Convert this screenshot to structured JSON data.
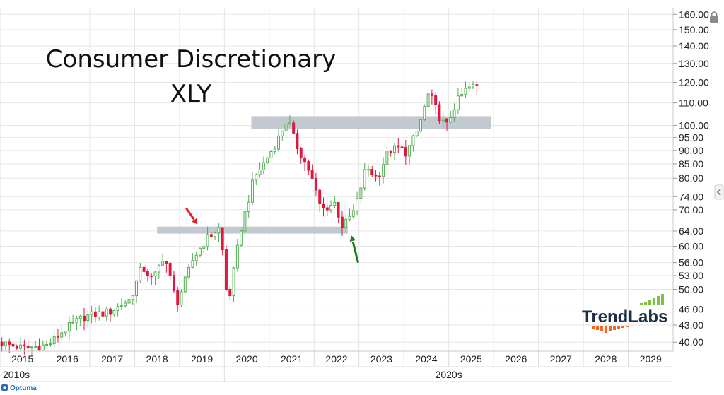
{
  "chart_data": {
    "type": "candlestick",
    "title": "Consumer Discretionary",
    "subtitle": "XLY",
    "y_scale": "log",
    "ylim": [
      38.5,
      164
    ],
    "xlim": [
      2015.0,
      2030.0
    ],
    "grid": true,
    "y_ticks": [
      {
        "value": 160,
        "label": "160.00"
      },
      {
        "value": 150,
        "label": "150.00"
      },
      {
        "value": 140,
        "label": "140.00"
      },
      {
        "value": 130,
        "label": "130.00"
      },
      {
        "value": 120,
        "label": "120.00"
      },
      {
        "value": 110,
        "label": "110.00"
      },
      {
        "value": 100,
        "label": "100.00"
      },
      {
        "value": 95,
        "label": "95.00"
      },
      {
        "value": 90,
        "label": "90.00"
      },
      {
        "value": 85,
        "label": "85.00"
      },
      {
        "value": 80,
        "label": "80.00"
      },
      {
        "value": 74,
        "label": "74.00"
      },
      {
        "value": 70,
        "label": "70.00"
      },
      {
        "value": 64,
        "label": "64.00"
      },
      {
        "value": 60,
        "label": "60.00"
      },
      {
        "value": 56,
        "label": "56.00"
      },
      {
        "value": 53,
        "label": "53.00"
      },
      {
        "value": 50,
        "label": "50.00"
      },
      {
        "value": 46,
        "label": "46.00"
      },
      {
        "value": 43,
        "label": "43.00"
      },
      {
        "value": 40,
        "label": "40.00"
      }
    ],
    "x_ticks": [
      {
        "value": 2015,
        "label": "2015"
      },
      {
        "value": 2016,
        "label": "2016"
      },
      {
        "value": 2017,
        "label": "2017"
      },
      {
        "value": 2018,
        "label": "2018"
      },
      {
        "value": 2019,
        "label": "2019"
      },
      {
        "value": 2020,
        "label": "2020"
      },
      {
        "value": 2021,
        "label": "2021"
      },
      {
        "value": 2022,
        "label": "2022"
      },
      {
        "value": 2023,
        "label": "2023"
      },
      {
        "value": 2024,
        "label": "2024"
      },
      {
        "value": 2025,
        "label": "2025"
      },
      {
        "value": 2026,
        "label": "2026"
      },
      {
        "value": 2027,
        "label": "2027"
      },
      {
        "value": 2028,
        "label": "2028"
      },
      {
        "value": 2029,
        "label": "2029"
      }
    ],
    "decades": [
      {
        "label": "2010s",
        "start": 2010,
        "end": 2020
      },
      {
        "label": "2020s",
        "start": 2020,
        "end": 2030
      }
    ],
    "anchors": [
      [
        2015.0,
        40.0
      ],
      [
        2015.55,
        39.0
      ],
      [
        2016.12,
        39.5
      ],
      [
        2016.45,
        42.0
      ],
      [
        2016.9,
        44.5
      ],
      [
        2017.5,
        45.5
      ],
      [
        2017.95,
        48.0
      ],
      [
        2018.2,
        55.0
      ],
      [
        2018.45,
        52.0
      ],
      [
        2018.7,
        58.0
      ],
      [
        2018.98,
        47.0
      ],
      [
        2019.35,
        57.0
      ],
      [
        2019.65,
        62.0
      ],
      [
        2019.95,
        65.0
      ],
      [
        2020.12,
        46.5
      ],
      [
        2020.4,
        64.0
      ],
      [
        2020.7,
        80.0
      ],
      [
        2020.95,
        86.0
      ],
      [
        2021.2,
        93.0
      ],
      [
        2021.45,
        103.0
      ],
      [
        2021.62,
        93.0
      ],
      [
        2021.95,
        82.0
      ],
      [
        2022.2,
        70.0
      ],
      [
        2022.5,
        72.0
      ],
      [
        2022.68,
        65.0
      ],
      [
        2022.95,
        70.0
      ],
      [
        2023.2,
        84.0
      ],
      [
        2023.45,
        80.0
      ],
      [
        2023.7,
        90.0
      ],
      [
        2023.95,
        91.0
      ],
      [
        2024.1,
        89.0
      ],
      [
        2024.35,
        98.0
      ],
      [
        2024.6,
        115.0
      ],
      [
        2024.85,
        103.0
      ],
      [
        2025.0,
        100.0
      ],
      [
        2025.2,
        110.0
      ],
      [
        2025.45,
        117.0
      ],
      [
        2025.62,
        118.0
      ]
    ],
    "zones": [
      {
        "x_start": 2020.6,
        "x_end": 2025.95,
        "y_low": 98.4,
        "y_high": 104.0,
        "color": "#c2c9d0"
      },
      {
        "x_start": 2018.5,
        "x_end": 2022.75,
        "y_low": 63.3,
        "y_high": 65.2,
        "color": "#c2c9d0"
      }
    ],
    "annotations": [
      {
        "type": "arrow",
        "color": "#e52020",
        "from": [
          2019.15,
          70.5
        ],
        "to": [
          2019.4,
          65.8
        ]
      },
      {
        "type": "arrow",
        "color": "#1a7d1a",
        "from": [
          2022.98,
          56.0
        ],
        "to": [
          2022.83,
          62.8
        ]
      }
    ],
    "colors": {
      "up": "#4fae4f",
      "down": "#e0163e",
      "grid": "#e6e6e6",
      "axis": "#cccccc",
      "zone": "#c2c9d0"
    }
  },
  "logo": {
    "trend": "Trend",
    "labs": "Labs",
    "dark_color": "#1b2f45",
    "green_color": "#7cc243",
    "orange_color": "#f26a21"
  },
  "brand": {
    "name": "Optuma"
  },
  "icons": {
    "lock": "lock-icon",
    "scroll": "chevron-left-icon",
    "brand": "optuma-logo-icon"
  }
}
